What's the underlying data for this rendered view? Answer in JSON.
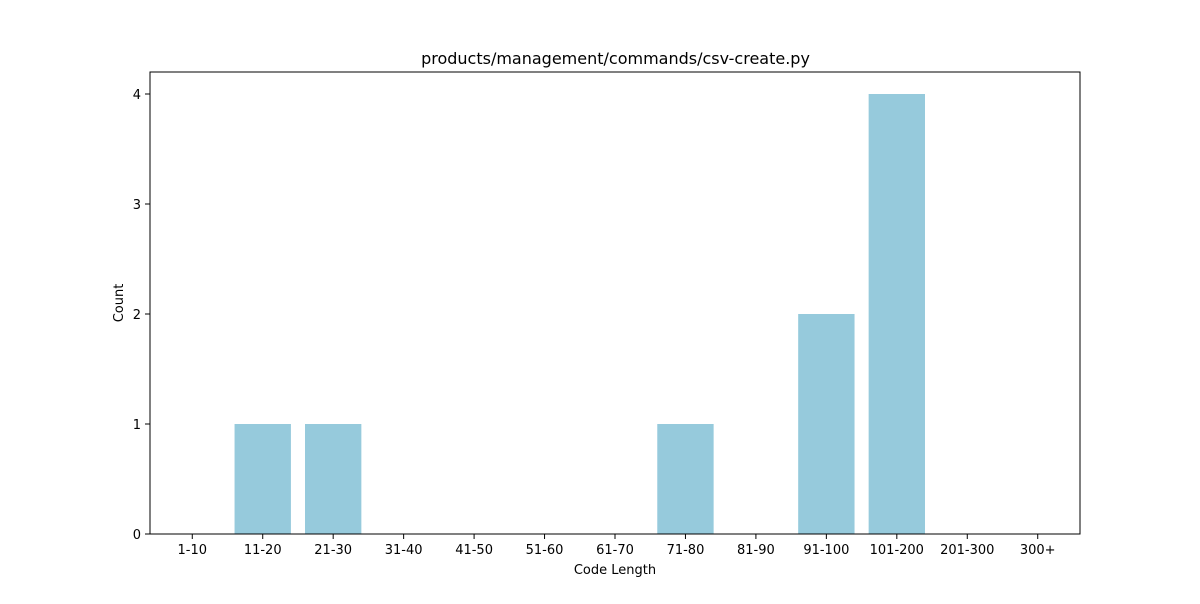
{
  "chart_data": {
    "type": "bar",
    "title": "products/management/commands/csv-create.py",
    "xlabel": "Code Length",
    "ylabel": "Count",
    "categories": [
      "1-10",
      "11-20",
      "21-30",
      "31-40",
      "41-50",
      "51-60",
      "61-70",
      "71-80",
      "81-90",
      "91-100",
      "101-200",
      "201-300",
      "300+"
    ],
    "values": [
      0,
      1,
      1,
      0,
      0,
      0,
      0,
      1,
      0,
      2,
      4,
      0,
      0
    ],
    "ylim": [
      0,
      4.2
    ],
    "yticks": [
      0,
      1,
      2,
      3,
      4
    ],
    "bar_color": "#96cadc",
    "grid": false,
    "legend": "none"
  }
}
